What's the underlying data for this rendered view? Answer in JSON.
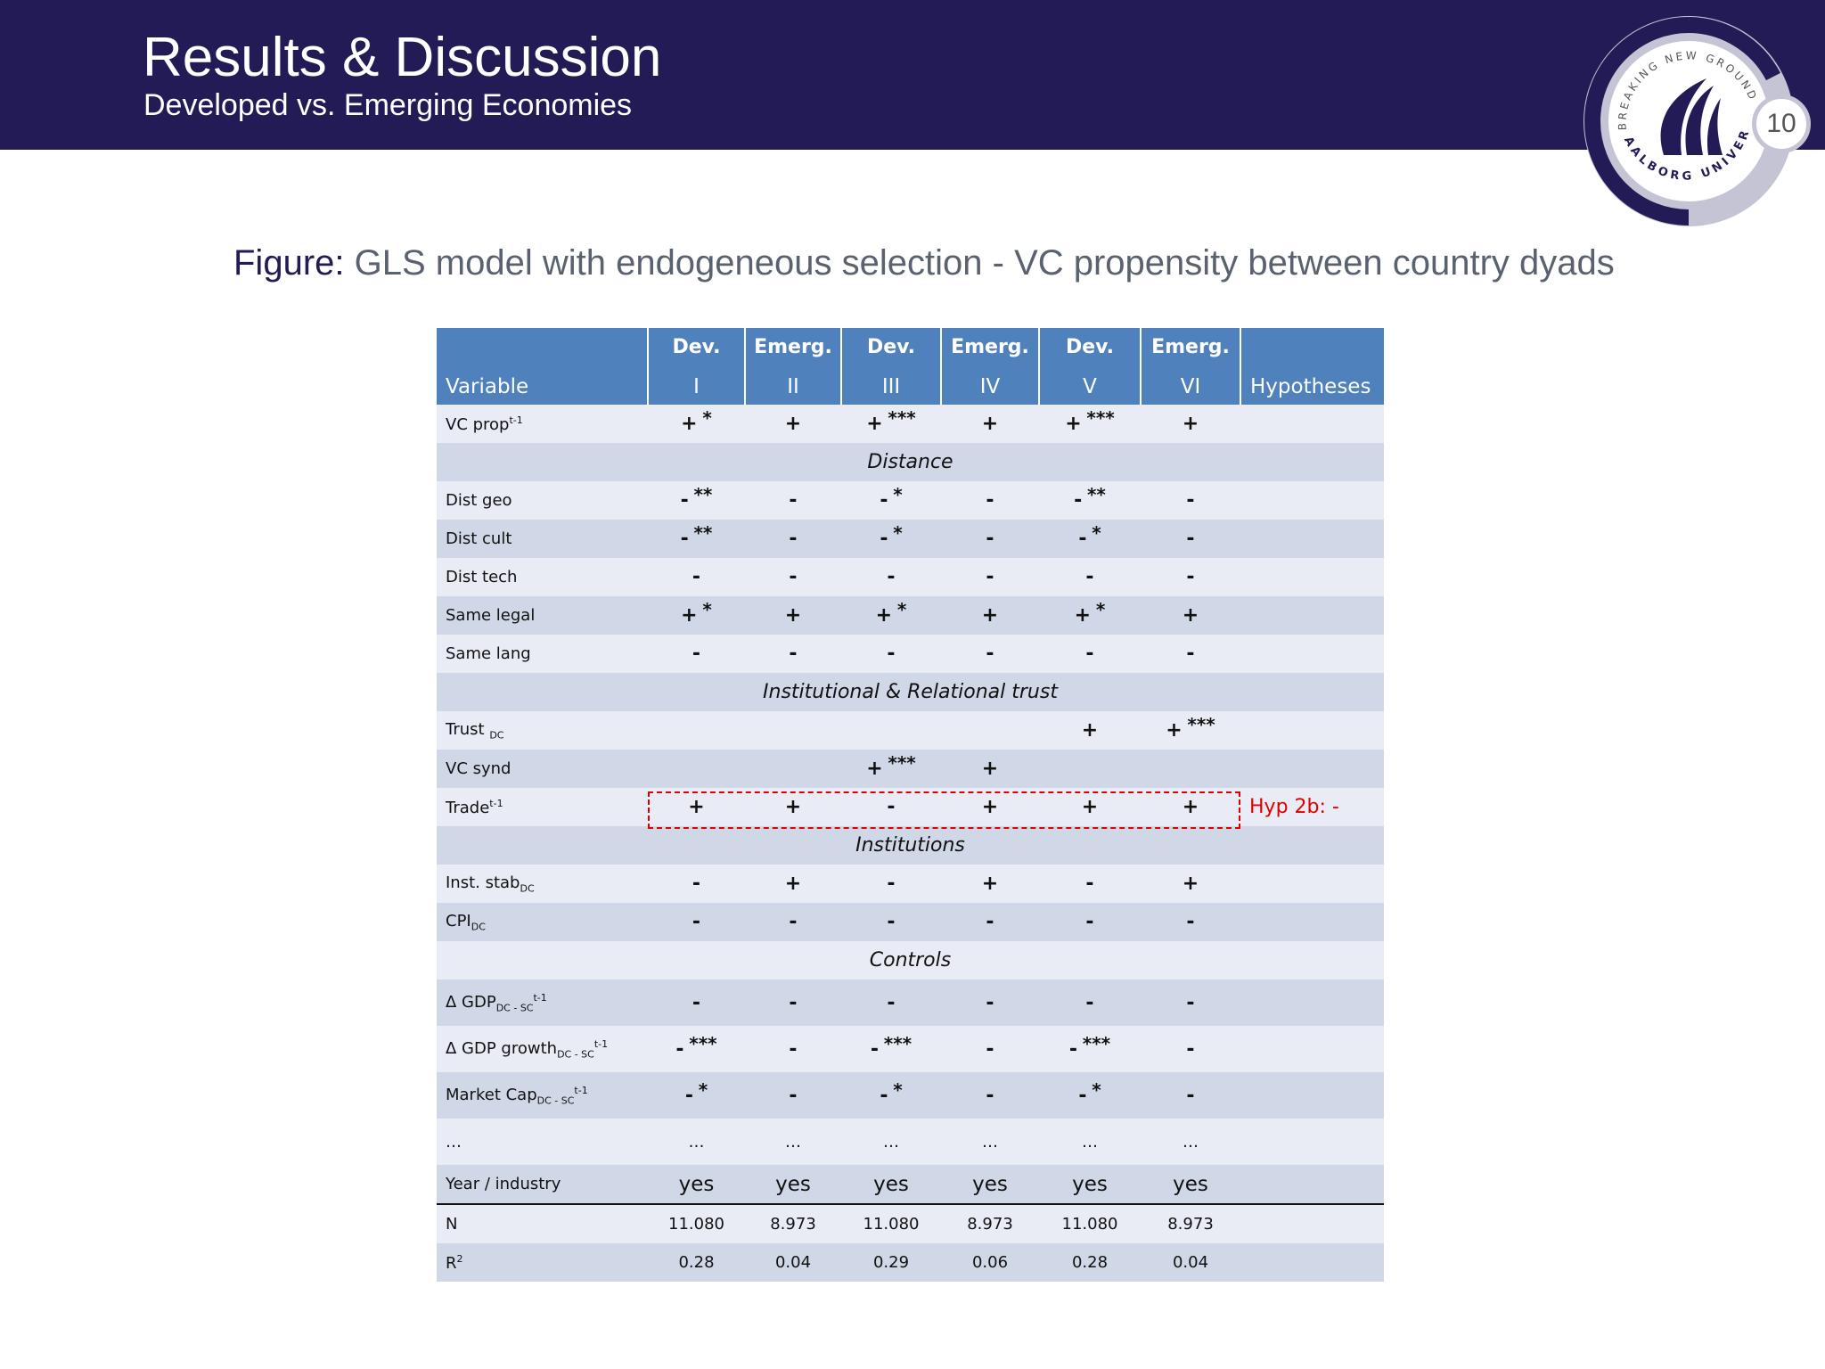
{
  "header": {
    "title": "Results & Discussion",
    "subtitle": "Developed vs. Emerging Economies",
    "page_number": "10",
    "logo": {
      "top_text": "BREAKING NEW GROUND",
      "bottom_text": "AALBORG UNIVERSITY"
    },
    "colors": {
      "banner": "#231b56",
      "table_header": "#4f81bd",
      "row_light": "#e9ecf5",
      "row_dark": "#d0d8e8",
      "highlight": "#e00000"
    }
  },
  "caption": {
    "lead": "Figure:",
    "text": " GLS model with endogeneous selection - VC propensity between country dyads"
  },
  "table": {
    "columns": [
      {
        "top": "",
        "bottom": "Variable"
      },
      {
        "top": "Dev.",
        "bottom": "I"
      },
      {
        "top": "Emerg.",
        "bottom": "II"
      },
      {
        "top": "Dev.",
        "bottom": "III"
      },
      {
        "top": "Emerg.",
        "bottom": "IV"
      },
      {
        "top": "Dev.",
        "bottom": "V"
      },
      {
        "top": "Emerg.",
        "bottom": "VI"
      },
      {
        "top": "",
        "bottom": "Hypotheses"
      }
    ],
    "rows": {
      "vc_prop": {
        "label": "VC prop",
        "sup": "t-1",
        "cells": [
          [
            "+",
            "*"
          ],
          [
            "+",
            ""
          ],
          [
            "+",
            "***"
          ],
          [
            "+",
            ""
          ],
          [
            "+",
            "***"
          ],
          [
            "+",
            ""
          ]
        ]
      },
      "section_distance": "Distance",
      "dist_geo": {
        "label": "Dist geo",
        "cells": [
          [
            "-",
            "**"
          ],
          [
            "-",
            ""
          ],
          [
            "-",
            "*"
          ],
          [
            "-",
            ""
          ],
          [
            "-",
            "**"
          ],
          [
            "-",
            ""
          ]
        ]
      },
      "dist_cult": {
        "label": "Dist cult",
        "cells": [
          [
            "-",
            "**"
          ],
          [
            "-",
            ""
          ],
          [
            "-",
            "*"
          ],
          [
            "-",
            ""
          ],
          [
            "-",
            "*"
          ],
          [
            "-",
            ""
          ]
        ]
      },
      "dist_tech": {
        "label": "Dist tech",
        "cells": [
          [
            "-",
            ""
          ],
          [
            "-",
            ""
          ],
          [
            "-",
            ""
          ],
          [
            "-",
            ""
          ],
          [
            "-",
            ""
          ],
          [
            "-",
            ""
          ]
        ]
      },
      "same_legal": {
        "label": "Same legal",
        "cells": [
          [
            "+",
            "*"
          ],
          [
            "+",
            ""
          ],
          [
            "+",
            "*"
          ],
          [
            "+",
            ""
          ],
          [
            "+",
            "*"
          ],
          [
            "+",
            ""
          ]
        ]
      },
      "same_lang": {
        "label": "Same lang",
        "cells": [
          [
            "-",
            ""
          ],
          [
            "-",
            ""
          ],
          [
            "-",
            ""
          ],
          [
            "-",
            ""
          ],
          [
            "-",
            ""
          ],
          [
            "-",
            ""
          ]
        ]
      },
      "section_trust": "Institutional & Relational trust",
      "trust_dc": {
        "label": "Trust ",
        "sub": "DC",
        "cells": [
          [
            "",
            ""
          ],
          [
            "",
            ""
          ],
          [
            "",
            ""
          ],
          [
            "",
            ""
          ],
          [
            "+",
            ""
          ],
          [
            "+",
            "***"
          ]
        ]
      },
      "vc_synd": {
        "label": "VC synd",
        "cells": [
          [
            "",
            ""
          ],
          [
            "",
            ""
          ],
          [
            "+",
            "***"
          ],
          [
            "+",
            ""
          ],
          [
            "",
            ""
          ],
          [
            "",
            ""
          ]
        ]
      },
      "trade": {
        "label": "Trade",
        "sup": "t-1",
        "cells": [
          [
            "+",
            ""
          ],
          [
            "+",
            ""
          ],
          [
            "-",
            ""
          ],
          [
            "+",
            ""
          ],
          [
            "+",
            ""
          ],
          [
            "+",
            ""
          ]
        ],
        "hypothesis": "Hyp 2b: -"
      },
      "section_institutions": "Institutions",
      "inst_stab": {
        "label": "Inst. stab",
        "sub": "DC",
        "cells": [
          [
            "-",
            ""
          ],
          [
            "+",
            ""
          ],
          [
            "-",
            ""
          ],
          [
            "+",
            ""
          ],
          [
            "-",
            ""
          ],
          [
            "+",
            ""
          ]
        ]
      },
      "cpi": {
        "label": "CPI",
        "sub": "DC",
        "cells": [
          [
            "-",
            ""
          ],
          [
            "-",
            ""
          ],
          [
            "-",
            ""
          ],
          [
            "-",
            ""
          ],
          [
            "-",
            ""
          ],
          [
            "-",
            ""
          ]
        ]
      },
      "section_controls": "Controls",
      "gdp": {
        "label": "Δ GDP",
        "sub": "DC - SC",
        "sup": "t-1",
        "cells": [
          [
            "-",
            ""
          ],
          [
            "-",
            ""
          ],
          [
            "-",
            ""
          ],
          [
            "-",
            ""
          ],
          [
            "-",
            ""
          ],
          [
            "-",
            ""
          ]
        ]
      },
      "gdp_growth": {
        "label": "Δ GDP growth",
        "sub": "DC - SC",
        "sup": "t-1",
        "cells": [
          [
            "-",
            "***"
          ],
          [
            "-",
            ""
          ],
          [
            "-",
            "***"
          ],
          [
            "-",
            ""
          ],
          [
            "-",
            "***"
          ],
          [
            "-",
            ""
          ]
        ]
      },
      "market_cap": {
        "label": "Market Cap",
        "sub": "DC - SC",
        "sup": "t-1",
        "cells": [
          [
            "-",
            "*"
          ],
          [
            "-",
            ""
          ],
          [
            "-",
            "*"
          ],
          [
            "-",
            ""
          ],
          [
            "-",
            "*"
          ],
          [
            "-",
            ""
          ]
        ]
      },
      "ellipsis": {
        "label": "…",
        "cells": [
          "…",
          "…",
          "…",
          "…",
          "…",
          "…"
        ]
      },
      "year_industry": {
        "label": "Year / industry",
        "cells": [
          "yes",
          "yes",
          "yes",
          "yes",
          "yes",
          "yes"
        ]
      },
      "n": {
        "label": "N",
        "cells": [
          "11.080",
          "8.973",
          "11.080",
          "8.973",
          "11.080",
          "8.973"
        ]
      },
      "r2": {
        "label": "R",
        "sup": "2",
        "cells": [
          "0.28",
          "0.04",
          "0.29",
          "0.06",
          "0.28",
          "0.04"
        ]
      }
    }
  }
}
